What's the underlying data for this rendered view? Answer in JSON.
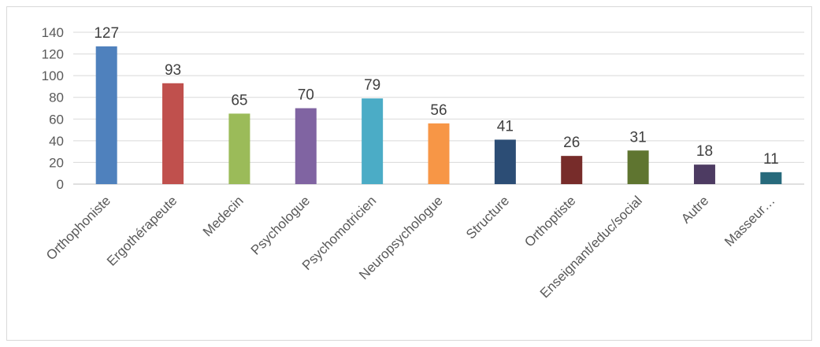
{
  "chart_data": {
    "type": "bar",
    "title": "",
    "xlabel": "",
    "ylabel": "",
    "ylim": [
      0,
      140
    ],
    "yticks": [
      0,
      20,
      40,
      60,
      80,
      100,
      120,
      140
    ],
    "grid": true,
    "legend": "none",
    "categories": [
      "Orthophoniste",
      "Ergothérapeute",
      "Medecin",
      "Psychologue",
      "Psychomotricien",
      "Neuropsychologue",
      "Structure",
      "Orthoptiste",
      "Enseignant/educ/social",
      "Autre",
      "Masseur…"
    ],
    "values": [
      127,
      93,
      65,
      70,
      79,
      56,
      41,
      26,
      31,
      18,
      11
    ],
    "colors": [
      "#4f81bd",
      "#c0504d",
      "#9bbb59",
      "#8064a2",
      "#4bacc6",
      "#f79646",
      "#2c4d75",
      "#772c2a",
      "#5f7530",
      "#4d3b62",
      "#276a7c"
    ]
  }
}
